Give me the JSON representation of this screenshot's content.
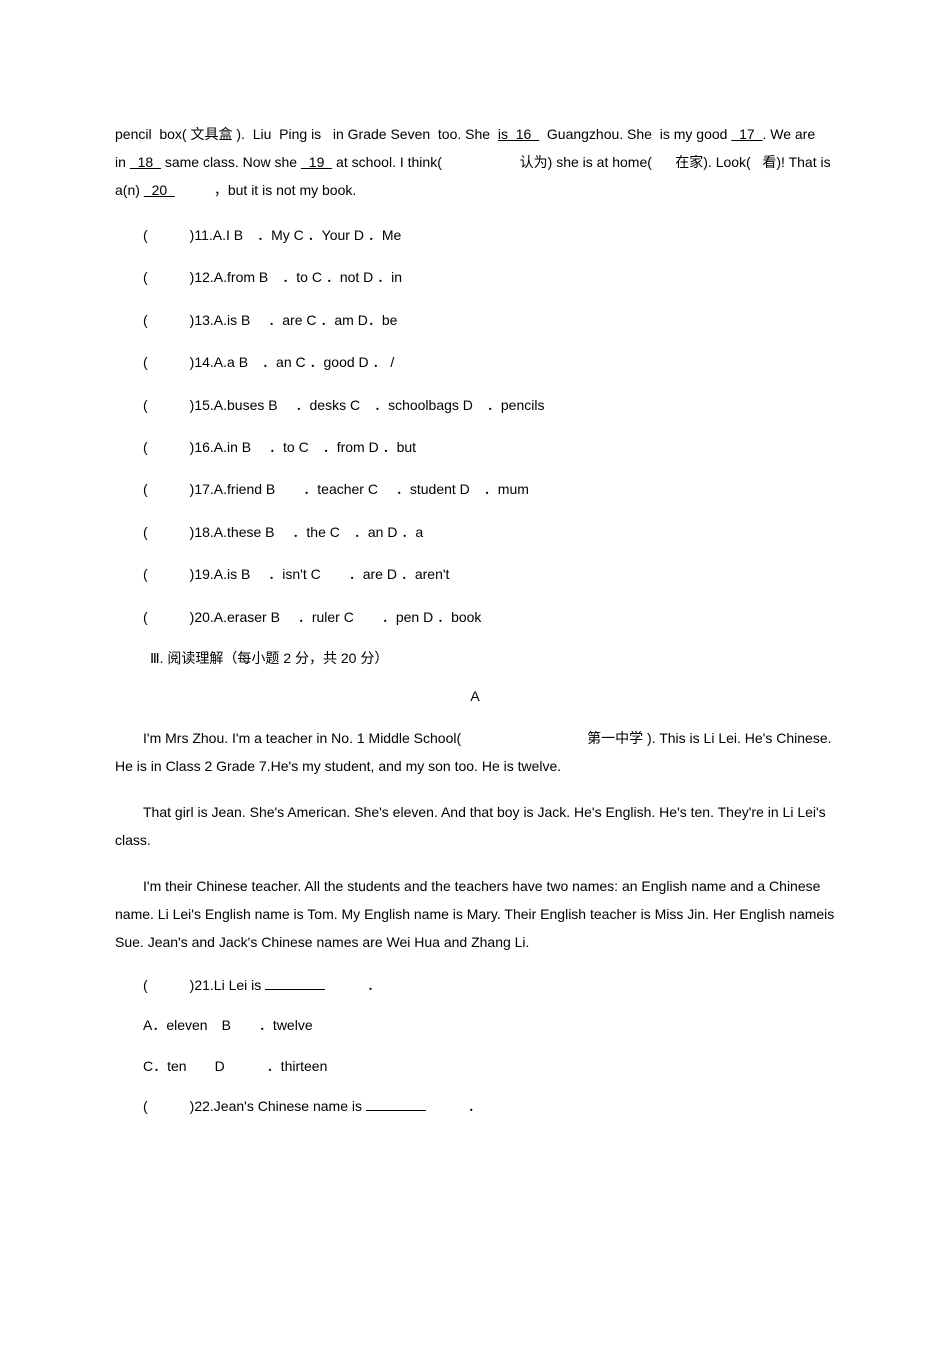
{
  "cloze": {
    "passage_html": "pencil&nbsp;&nbsp;box( 文具盒 ).&nbsp;&nbsp;Liu&nbsp;&nbsp;Ping is&nbsp;&nbsp;&nbsp;in Grade Seven&nbsp;&nbsp;too. She&nbsp;&nbsp;<span class='u'>is&nbsp;&nbsp;16&nbsp;&nbsp;</span>&nbsp;&nbsp;Guangzhou. She&nbsp;&nbsp;is my good&nbsp;<span class='u'>&nbsp;&nbsp;17&nbsp;&nbsp;</span>. We are in&nbsp;<span class='u'>&nbsp;&nbsp;18&nbsp;&nbsp;</span>&nbsp;same class. Now she&nbsp;<span class='u'>&nbsp;&nbsp;19&nbsp;&nbsp;</span>&nbsp;at school. I think(&nbsp;&nbsp;&nbsp;&nbsp;&nbsp;&nbsp;&nbsp;&nbsp;&nbsp;&nbsp;&nbsp;&nbsp;&nbsp;&nbsp;&nbsp;&nbsp;&nbsp;&nbsp;&nbsp;&nbsp;认为) she is at home(&nbsp;&nbsp;&nbsp;&nbsp;&nbsp;&nbsp;在家). Look(&nbsp;&nbsp;&nbsp;看)! That is a(n)&nbsp;<span class='u'>&nbsp;&nbsp;2<span class='u'>0</span>&nbsp;&nbsp;</span>&nbsp;&nbsp;&nbsp;&nbsp;&nbsp;&nbsp;&nbsp;&nbsp;&nbsp;&nbsp;，but it is not my book.",
    "items": [
      {
        "num": "11",
        "opts": "A.I  B　．My  C ．Your  D ．Me"
      },
      {
        "num": "12",
        "opts": "A.from  B　．to  C  ．not  D  ．in"
      },
      {
        "num": "13",
        "opts": "A.is  B　 ．are  C  ．am  D．be"
      },
      {
        "num": "14",
        "opts": "A.a  B　．an  C ．good  D ． /"
      },
      {
        "num": "15",
        "opts": "A.buses  B　 ．desks   C　．schoolbags  D　．pencils"
      },
      {
        "num": "16",
        "opts": "A.in  B　 ．to   C　．from  D ．but"
      },
      {
        "num": "17",
        "opts": "A.friend  B　　．teacher   C　 ．student  D　．mum"
      },
      {
        "num": "18",
        "opts": "A.these  B　 ．the   C　．an  D ．a"
      },
      {
        "num": "19",
        "opts": "A.is  B　 ．isn't   C　　．are  D ．aren't"
      },
      {
        "num": "20",
        "opts": "A.eraser  B　 ．ruler   C　　．pen  D ．book"
      }
    ]
  },
  "reading": {
    "section_header": "Ⅲ. 阅读理解（每小题  2 分，共  20 分）",
    "title": "A",
    "paragraphs": [
      "I'm Mrs Zhou. I'm a teacher in No. 1 Middle School(　　　　　　　　　第一中学 ). This is Li Lei. He's  Chinese.   He is   in  Class   2 Grade 7.He's   my student,    and my son too.   He is  twelve.",
      "That girl is Jean. She's American. She's eleven. And that boy is Jack. He's English. He's ten. They're in Li Lei's class.",
      "I'm their Chinese teacher. All the students and the teachers have two names: an English name and a Chinese name. Li Lei's English name is Tom. My English name is  Mary.  Their   English   teacher   is  Miss Jin.   Her English   nameis Sue.  Jean's   and  Jack's Chinese names are Wei Hua and Zhang Li."
    ],
    "questions": [
      {
        "num": "21",
        "stem_prefix": "Li Lei is ",
        "blank": true,
        "stem_suffix": "．",
        "option_lines": [
          "A．eleven　B　　．twelve",
          "C．ten　　D　　　．thirteen"
        ]
      },
      {
        "num": "22",
        "stem_prefix": "Jean's Chinese name is ",
        "blank": true,
        "stem_suffix": "．",
        "option_lines": []
      }
    ]
  }
}
